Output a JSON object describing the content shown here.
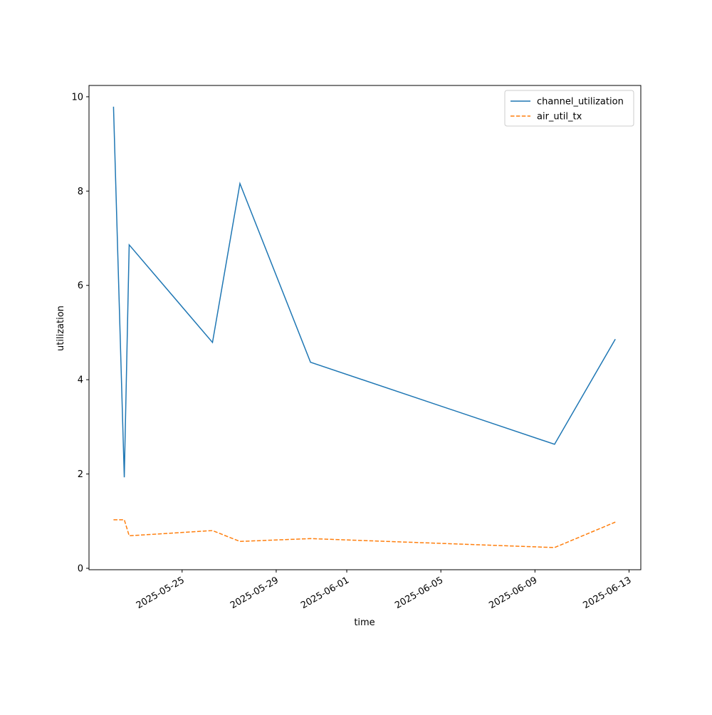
{
  "chart_data": {
    "type": "line",
    "x": [
      "2025-05-22T02:00",
      "2025-05-22T13:00",
      "2025-05-22T18:00",
      "2025-05-26T07:00",
      "2025-05-27T11:00",
      "2025-05-30T11:00",
      "2025-06-09T20:00",
      "2025-06-12T10:00"
    ],
    "series": [
      {
        "name": "channel_utilization",
        "color": "#1f77b4",
        "dash": false,
        "values": [
          9.79,
          1.93,
          6.86,
          4.79,
          8.16,
          4.37,
          2.63,
          4.86
        ]
      },
      {
        "name": "air_util_tx",
        "color": "#ff7f0e",
        "dash": true,
        "values": [
          1.03,
          1.03,
          0.69,
          0.8,
          0.57,
          0.63,
          0.44,
          0.98
        ]
      }
    ],
    "xlabel": "time",
    "ylabel": "utilization",
    "xlim": [
      "2025-05-21T01:00",
      "2025-06-13T12:00"
    ],
    "xticks": [
      "2025-05-25",
      "2025-05-29",
      "2025-06-01",
      "2025-06-05",
      "2025-06-09",
      "2025-06-13"
    ],
    "ylim": [
      -0.03,
      10.24
    ],
    "yticks": [
      0,
      2,
      4,
      6,
      8,
      10
    ],
    "legend": "upper right",
    "grid": false
  }
}
